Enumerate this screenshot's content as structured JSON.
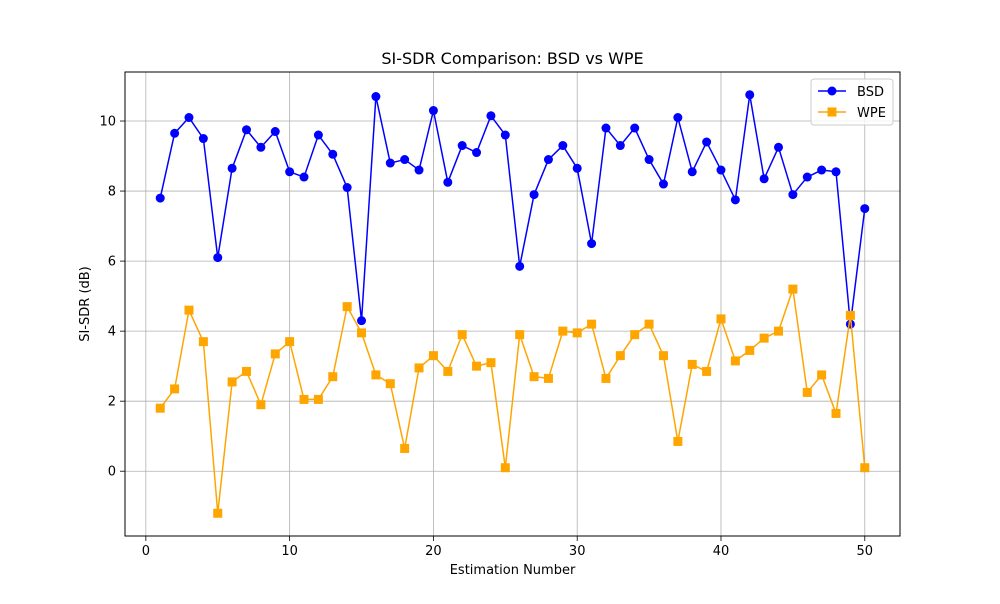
{
  "chart_data": {
    "type": "line",
    "title": "SI-SDR Comparison: BSD vs WPE",
    "xlabel": "Estimation Number",
    "ylabel": "SI-SDR (dB)",
    "xlim": [
      -1.45,
      52.45
    ],
    "ylim": [
      -1.85,
      11.4
    ],
    "xticks": [
      0,
      10,
      20,
      30,
      40,
      50
    ],
    "yticks": [
      0,
      2,
      4,
      6,
      8,
      10
    ],
    "grid": true,
    "legend_position": "top-right",
    "x": [
      1,
      2,
      3,
      4,
      5,
      6,
      7,
      8,
      9,
      10,
      11,
      12,
      13,
      14,
      15,
      16,
      17,
      18,
      19,
      20,
      21,
      22,
      23,
      24,
      25,
      26,
      27,
      28,
      29,
      30,
      31,
      32,
      33,
      34,
      35,
      36,
      37,
      38,
      39,
      40,
      41,
      42,
      43,
      44,
      45,
      46,
      47,
      48,
      49,
      50
    ],
    "series": [
      {
        "name": "BSD",
        "color": "#0000ff",
        "marker": "circle",
        "values": [
          7.8,
          9.65,
          10.1,
          9.5,
          6.1,
          8.65,
          9.75,
          9.25,
          9.7,
          8.55,
          8.4,
          9.6,
          9.05,
          8.1,
          4.3,
          10.7,
          8.8,
          8.9,
          8.6,
          10.3,
          8.25,
          9.3,
          9.1,
          10.15,
          9.6,
          5.85,
          7.9,
          8.9,
          9.3,
          8.65,
          6.5,
          9.8,
          9.3,
          9.8,
          8.9,
          8.2,
          10.1,
          8.55,
          9.4,
          8.6,
          7.75,
          10.75,
          8.35,
          9.25,
          7.9,
          8.4,
          8.6,
          8.55,
          4.2,
          7.5
        ]
      },
      {
        "name": "WPE",
        "color": "#ffa500",
        "marker": "square",
        "values": [
          1.8,
          2.35,
          4.6,
          3.7,
          -1.2,
          2.55,
          2.85,
          1.9,
          3.35,
          3.7,
          2.05,
          2.05,
          2.7,
          4.7,
          3.95,
          2.75,
          2.5,
          0.65,
          2.95,
          3.3,
          2.85,
          3.9,
          3.0,
          3.1,
          0.1,
          3.9,
          2.7,
          2.65,
          4.0,
          3.95,
          4.2,
          2.65,
          3.3,
          3.9,
          4.2,
          3.3,
          0.85,
          3.05,
          2.85,
          4.35,
          3.15,
          3.45,
          3.8,
          4.0,
          5.2,
          2.25,
          2.75,
          1.65,
          4.45,
          0.1
        ]
      }
    ]
  }
}
